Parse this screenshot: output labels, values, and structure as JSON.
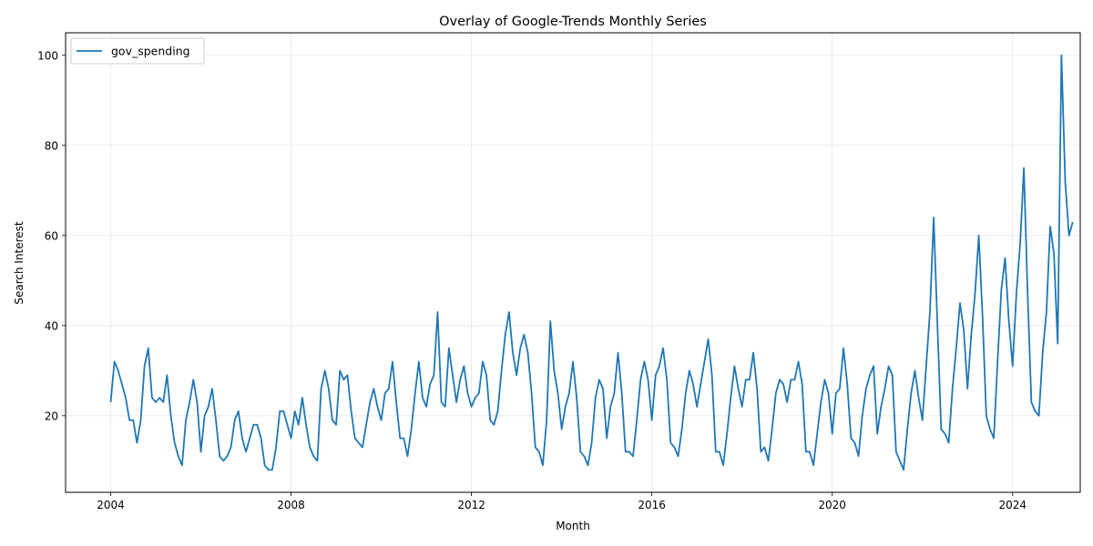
{
  "chart_data": {
    "type": "line",
    "title": "Overlay of Google-Trends Monthly Series",
    "xlabel": "Month",
    "ylabel": "Search Interest",
    "x_start": "2004-01",
    "x_ticks": [
      "2004",
      "2008",
      "2012",
      "2016",
      "2020",
      "2024"
    ],
    "y_ticks": [
      "20",
      "40",
      "60",
      "80",
      "100"
    ],
    "xlim": [
      "2003-01",
      "2025-07"
    ],
    "ylim": [
      3,
      105
    ],
    "grid": true,
    "legend_position": "top-left",
    "series": [
      {
        "name": "gov_spending",
        "color": "#1f77b4",
        "values": [
          23,
          32,
          30,
          27,
          24,
          19,
          19,
          14,
          19,
          31,
          35,
          24,
          23,
          24,
          23,
          29,
          20,
          14,
          11,
          9,
          19,
          23,
          28,
          23,
          12,
          20,
          22,
          26,
          19,
          11,
          10,
          11,
          13,
          19,
          21,
          15,
          12,
          15,
          18,
          18,
          15,
          9,
          8,
          8,
          13,
          21,
          21,
          18,
          15,
          21,
          18,
          24,
          18,
          13,
          11,
          10,
          26,
          30,
          26,
          19,
          18,
          30,
          28,
          29,
          21,
          15,
          14,
          13,
          18,
          23,
          26,
          22,
          19,
          25,
          26,
          32,
          23,
          15,
          15,
          11,
          17,
          25,
          32,
          24,
          22,
          27,
          29,
          43,
          23,
          22,
          35,
          29,
          23,
          28,
          31,
          25,
          22,
          24,
          25,
          32,
          29,
          19,
          18,
          21,
          30,
          38,
          43,
          34,
          29,
          35,
          38,
          34,
          25,
          13,
          12,
          9,
          19,
          41,
          30,
          25,
          17,
          22,
          25,
          32,
          24,
          12,
          11,
          9,
          14,
          24,
          28,
          26,
          15,
          22,
          25,
          34,
          25,
          12,
          12,
          11,
          19,
          28,
          32,
          28,
          19,
          29,
          31,
          35,
          28,
          14,
          13,
          11,
          17,
          25,
          30,
          27,
          22,
          27,
          32,
          37,
          29,
          12,
          12,
          9,
          16,
          24,
          31,
          26,
          22,
          28,
          28,
          34,
          26,
          12,
          13,
          10,
          17,
          25,
          28,
          27,
          23,
          28,
          28,
          32,
          27,
          12,
          12,
          9,
          16,
          23,
          28,
          25,
          16,
          25,
          26,
          35,
          27,
          15,
          14,
          11,
          20,
          26,
          29,
          31,
          16,
          22,
          26,
          31,
          29,
          12,
          10,
          8,
          17,
          25,
          30,
          24,
          19,
          31,
          43,
          64,
          40,
          17,
          16,
          14,
          26,
          35,
          45,
          39,
          26,
          38,
          47,
          60,
          42,
          20,
          17,
          15,
          32,
          48,
          55,
          41,
          31,
          47,
          58,
          75,
          47,
          23,
          21,
          20,
          34,
          43,
          62,
          56,
          36,
          100,
          72,
          60,
          63
        ]
      }
    ]
  }
}
